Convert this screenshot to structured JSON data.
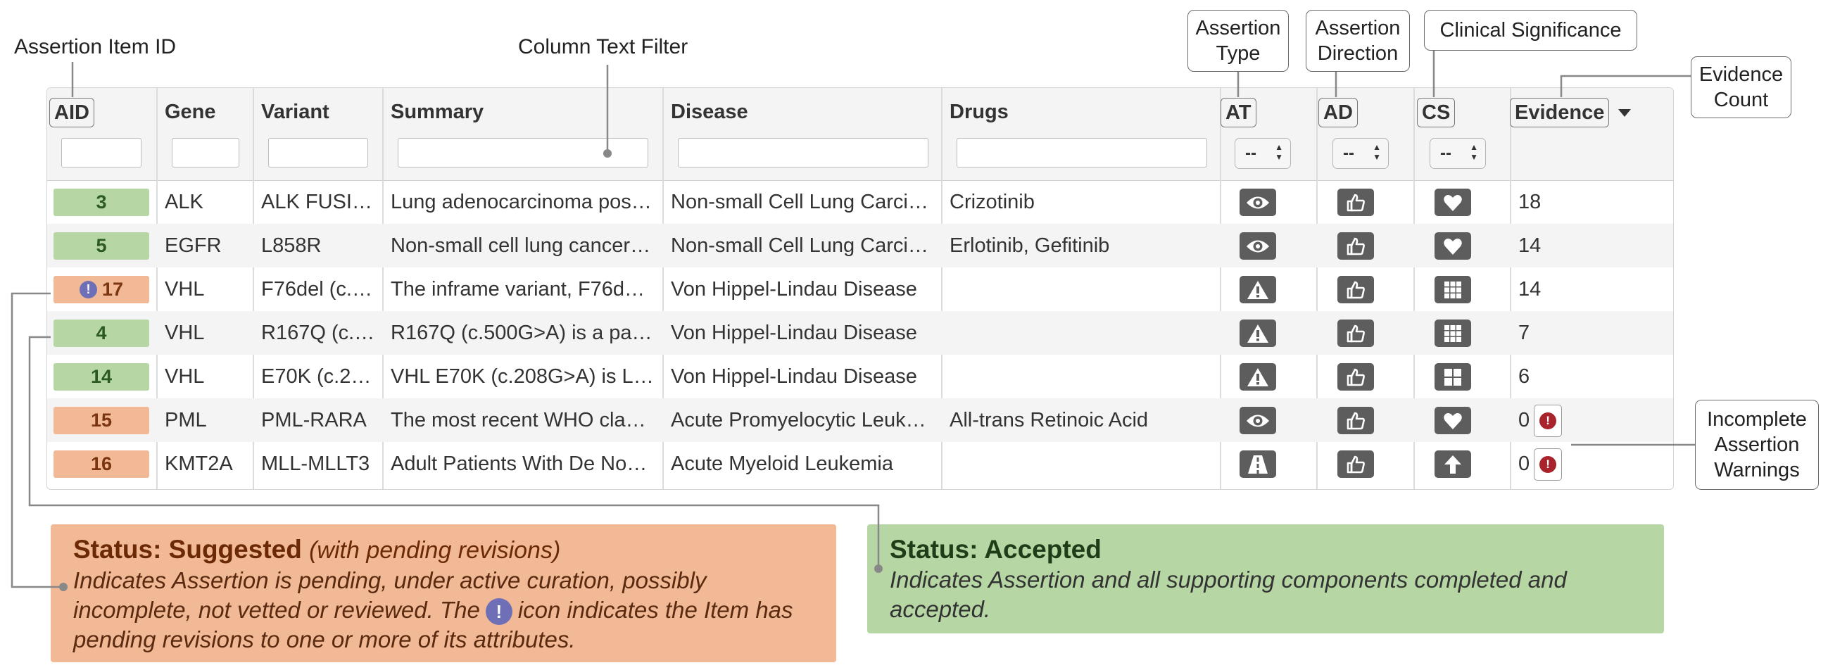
{
  "annotations": {
    "assertion_item_id": "Assertion Item ID",
    "column_text_filter": "Column Text Filter",
    "assertion_type": "Assertion\nType",
    "assertion_direction": "Assertion\nDirection",
    "clinical_significance": "Clinical Significance",
    "evidence_count": "Evidence\nCount",
    "incomplete_warnings": "Incomplete\nAssertion\nWarnings"
  },
  "table": {
    "columns": [
      "AID",
      "Gene",
      "Variant",
      "Summary",
      "Disease",
      "Drugs",
      "AT",
      "AD",
      "CS",
      "Evidence"
    ],
    "select_default": "--",
    "sort_icon": "caret-down-icon",
    "rows": [
      {
        "aid": "3",
        "status": "accepted",
        "revisions": false,
        "gene": "ALK",
        "variant": "ALK FUSI…",
        "summary": "Lung adenocarcinoma pos…",
        "disease": "Non-small Cell Lung Carcin…",
        "drugs": "Crizotinib",
        "at_icon": "eye-icon",
        "ad_icon": "thumbs-up-icon",
        "cs_icon": "heart-icon",
        "evidence": "18",
        "warning": false
      },
      {
        "aid": "5",
        "status": "accepted",
        "revisions": false,
        "gene": "EGFR",
        "variant": "L858R",
        "summary": "Non-small cell lung cancer …",
        "disease": "Non-small Cell Lung Carcin…",
        "drugs": "Erlotinib, Gefitinib",
        "at_icon": "eye-icon",
        "ad_icon": "thumbs-up-icon",
        "cs_icon": "heart-icon",
        "evidence": "14",
        "warning": false
      },
      {
        "aid": "17",
        "status": "suggested",
        "revisions": true,
        "gene": "VHL",
        "variant": "F76del (c.…",
        "summary": "The inframe variant, F76de…",
        "disease": "Von Hippel-Lindau Disease",
        "drugs": "",
        "at_icon": "warning-triangle-icon",
        "ad_icon": "thumbs-up-icon",
        "cs_icon": "grid-nine-icon",
        "evidence": "14",
        "warning": false
      },
      {
        "aid": "4",
        "status": "accepted",
        "revisions": false,
        "gene": "VHL",
        "variant": "R167Q (c.…",
        "summary": "R167Q (c.500G>A) is a pat…",
        "disease": "Von Hippel-Lindau Disease",
        "drugs": "",
        "at_icon": "warning-triangle-icon",
        "ad_icon": "thumbs-up-icon",
        "cs_icon": "grid-nine-icon",
        "evidence": "7",
        "warning": false
      },
      {
        "aid": "14",
        "status": "accepted",
        "revisions": false,
        "gene": "VHL",
        "variant": "E70K (c.2…",
        "summary": "VHL E70K (c.208G>A) is Li…",
        "disease": "Von Hippel-Lindau Disease",
        "drugs": "",
        "at_icon": "warning-triangle-icon",
        "ad_icon": "thumbs-up-icon",
        "cs_icon": "grid-four-icon",
        "evidence": "6",
        "warning": false
      },
      {
        "aid": "15",
        "status": "suggested",
        "revisions": false,
        "gene": "PML",
        "variant": "PML-RARA",
        "summary": "The most recent WHO clas…",
        "disease": "Acute Promyelocytic Leuk…",
        "drugs": "All-trans Retinoic Acid",
        "at_icon": "eye-icon",
        "ad_icon": "thumbs-up-icon",
        "cs_icon": "heart-icon",
        "evidence": "0",
        "warning": true
      },
      {
        "aid": "16",
        "status": "suggested",
        "revisions": false,
        "gene": "KMT2A",
        "variant": "MLL-MLLT3",
        "summary": "Adult Patients With De Nov…",
        "disease": "Acute Myeloid Leukemia",
        "drugs": "",
        "at_icon": "road-icon",
        "ad_icon": "thumbs-up-icon",
        "cs_icon": "arrow-up-icon",
        "evidence": "0",
        "warning": true
      }
    ]
  },
  "status_suggested": {
    "title": "Status: Suggested",
    "subtitle": "(with pending revisions)",
    "desc_before_icon": "Indicates Assertion is pending, under active curation, possibly incomplete, not vetted or reviewed. The",
    "desc_after_icon": "icon indicates the Item has pending revisions to one or more of its attributes.",
    "icon": "pending-revision-icon",
    "color": "#f1b995"
  },
  "status_accepted": {
    "title": "Status: Accepted",
    "desc": "Indicates Assertion and all supporting components completed and accepted.",
    "color": "#b6d7a4"
  }
}
